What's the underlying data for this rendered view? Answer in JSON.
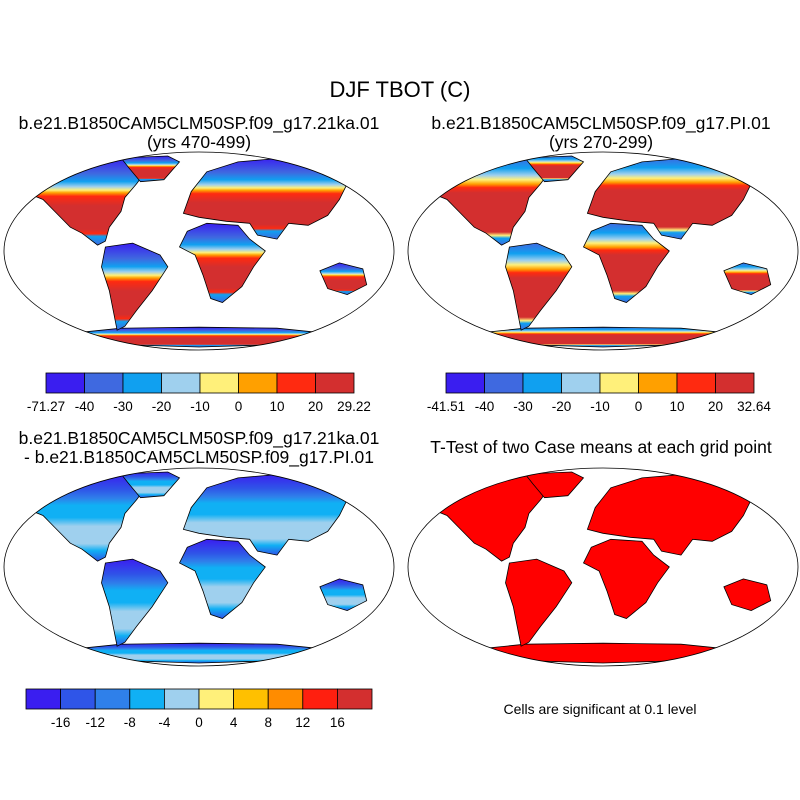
{
  "main_title": "DJF TBOT (C)",
  "panels": {
    "top_left": {
      "title_line1": "b.e21.B1850CAM5CLM50SP.f09_g17.21ka.01",
      "title_line2": "(yrs 470-499)"
    },
    "top_right": {
      "title_line1": "b.e21.B1850CAM5CLM50SP.f09_g17.PI.01",
      "title_line2": "(yrs 270-299)"
    },
    "bottom_left": {
      "title_line1": "b.e21.B1850CAM5CLM50SP.f09_g17.21ka.01",
      "title_line2": "- b.e21.B1850CAM5CLM50SP.f09_g17.PI.01"
    },
    "bottom_right": {
      "title_line1": "T-Test of two Case means at each grid point"
    }
  },
  "significance_note": "Cells are significant at 0.1 level",
  "colors": {
    "temp_scale": [
      "#3a1ef0",
      "#3f69e0",
      "#10a0f0",
      "#9fd0ee",
      "#fff07a",
      "#ffa000",
      "#ff2a10",
      "#d32f2f"
    ],
    "diff_scale": [
      "#3a1ef0",
      "#2f55e8",
      "#2f80ea",
      "#10b0f4",
      "#9fd0ee",
      "#fff07a",
      "#ffc000",
      "#ff8c00",
      "#ff1f0f",
      "#d32f2f"
    ],
    "ttest_fill": "#ff0000"
  },
  "chart_data": [
    {
      "type": "heatmap",
      "title": "b.e21.B1850CAM5CLM50SP.f09_g17.21ka.01 (yrs 470-499)",
      "colorbar_labels": [
        "-71.27",
        "-40",
        "-30",
        "-20",
        "-10",
        "0",
        "10",
        "20",
        "29.22"
      ],
      "levels": [
        -71.27,
        -40,
        -30,
        -20,
        -10,
        0,
        10,
        20,
        29.22
      ]
    },
    {
      "type": "heatmap",
      "title": "b.e21.B1850CAM5CLM50SP.f09_g17.PI.01 (yrs 270-299)",
      "colorbar_labels": [
        "-41.51",
        "-40",
        "-30",
        "-20",
        "-10",
        "0",
        "10",
        "20",
        "32.64"
      ],
      "levels": [
        -41.51,
        -40,
        -30,
        -20,
        -10,
        0,
        10,
        20,
        32.64
      ]
    },
    {
      "type": "heatmap",
      "title": "b.e21.B1850CAM5CLM50SP.f09_g17.21ka.01 - b.e21.B1850CAM5CLM50SP.f09_g17.PI.01",
      "colorbar_labels": [
        "-16",
        "-12",
        "-8",
        "-4",
        "0",
        "4",
        "8",
        "12",
        "16"
      ],
      "levels": [
        -16,
        -12,
        -8,
        -4,
        0,
        4,
        8,
        12,
        16
      ]
    },
    {
      "type": "heatmap",
      "title": "T-Test of two Case means at each grid point",
      "note": "Cells are significant at 0.1 level"
    }
  ]
}
